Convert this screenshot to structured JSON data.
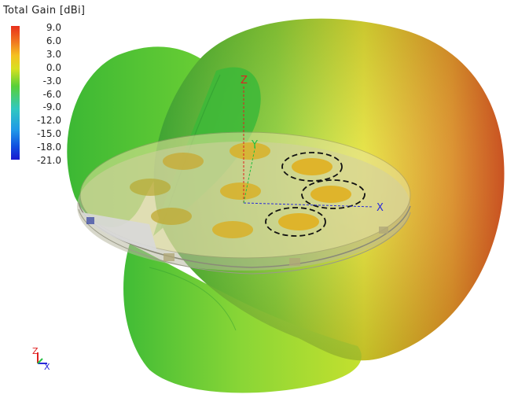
{
  "legend": {
    "title": "Total Gain [dBi]",
    "ticks": [
      "9.0",
      "6.0",
      "3.0",
      "0.0",
      "-3.0",
      "-6.0",
      "-9.0",
      "-12.0",
      "-15.0",
      "-18.0",
      "-21.0"
    ],
    "colors": [
      "#e8301c",
      "#f07820",
      "#f5c020",
      "#d8e020",
      "#9ee030",
      "#58d038",
      "#38c848",
      "#30c8c0",
      "#2098e8",
      "#1050e0",
      "#1818d0"
    ]
  },
  "axes": {
    "x": "X",
    "y": "Y",
    "z": "Z",
    "x_color": "#2a2ad8",
    "y_color": "#20c040",
    "z_color": "#e02020"
  },
  "triad": {
    "x": "X",
    "z": "Z"
  }
}
